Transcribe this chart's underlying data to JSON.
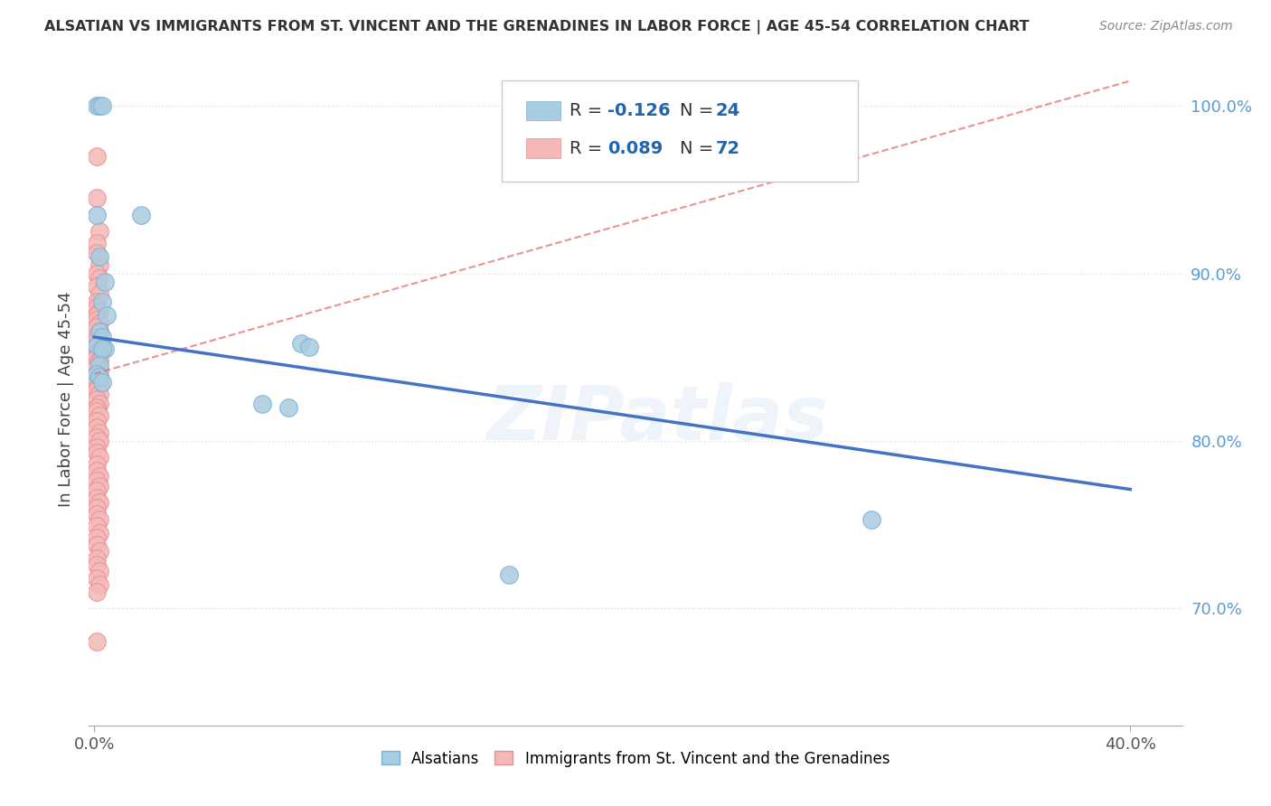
{
  "title": "ALSATIAN VS IMMIGRANTS FROM ST. VINCENT AND THE GRENADINES IN LABOR FORCE | AGE 45-54 CORRELATION CHART",
  "source": "Source: ZipAtlas.com",
  "ylabel": "In Labor Force | Age 45-54",
  "xlim": [
    -0.002,
    0.42
  ],
  "ylim": [
    0.63,
    1.02
  ],
  "xtick_positions": [
    0.0,
    0.4
  ],
  "xtick_labels": [
    "0.0%",
    "40.0%"
  ],
  "ytick_positions": [
    0.7,
    0.8,
    0.9,
    1.0
  ],
  "ytick_labels": [
    "70.0%",
    "80.0%",
    "90.0%",
    "100.0%"
  ],
  "blue_R": -0.126,
  "blue_N": 24,
  "pink_R": 0.089,
  "pink_N": 72,
  "blue_color": "#a8cce0",
  "pink_color": "#f4b8b8",
  "blue_edge_color": "#7bafd4",
  "pink_edge_color": "#e89090",
  "blue_line_color": "#4472c4",
  "pink_line_color": "#e07070",
  "legend_label_blue": "Alsatians",
  "legend_label_pink": "Immigrants from St. Vincent and the Grenadines",
  "blue_line_x0": 0.0,
  "blue_line_y0": 0.862,
  "blue_line_x1": 0.4,
  "blue_line_y1": 0.771,
  "pink_line_x0": 0.0,
  "pink_line_y0": 0.84,
  "pink_line_x1": 0.4,
  "pink_line_y1": 1.015,
  "blue_x": [
    0.001,
    0.002,
    0.003,
    0.001,
    0.002,
    0.004,
    0.003,
    0.005,
    0.002,
    0.003,
    0.001,
    0.004,
    0.003,
    0.002,
    0.001,
    0.002,
    0.003,
    0.08,
    0.083,
    0.065,
    0.075,
    0.16,
    0.3,
    0.018
  ],
  "blue_y": [
    1.0,
    1.0,
    1.0,
    0.935,
    0.91,
    0.895,
    0.883,
    0.875,
    0.865,
    0.862,
    0.857,
    0.855,
    0.855,
    0.845,
    0.84,
    0.838,
    0.835,
    0.858,
    0.856,
    0.822,
    0.82,
    0.72,
    0.753,
    0.935
  ],
  "pink_x": [
    0.001,
    0.001,
    0.002,
    0.001,
    0.001,
    0.002,
    0.001,
    0.002,
    0.001,
    0.002,
    0.001,
    0.001,
    0.002,
    0.001,
    0.001,
    0.002,
    0.001,
    0.002,
    0.001,
    0.001,
    0.002,
    0.001,
    0.002,
    0.001,
    0.001,
    0.002,
    0.001,
    0.001,
    0.002,
    0.001,
    0.002,
    0.001,
    0.002,
    0.001,
    0.001,
    0.002,
    0.001,
    0.002,
    0.001,
    0.001,
    0.002,
    0.001,
    0.001,
    0.002,
    0.001,
    0.002,
    0.001,
    0.001,
    0.002,
    0.001,
    0.001,
    0.002,
    0.001,
    0.002,
    0.001,
    0.001,
    0.002,
    0.001,
    0.001,
    0.002,
    0.001,
    0.002,
    0.001,
    0.001,
    0.002,
    0.001,
    0.001,
    0.002,
    0.001,
    0.002,
    0.001,
    0.001
  ],
  "pink_y": [
    0.97,
    0.945,
    0.925,
    0.918,
    0.912,
    0.905,
    0.9,
    0.897,
    0.892,
    0.888,
    0.883,
    0.88,
    0.877,
    0.875,
    0.872,
    0.87,
    0.868,
    0.865,
    0.862,
    0.86,
    0.858,
    0.856,
    0.854,
    0.852,
    0.85,
    0.848,
    0.846,
    0.844,
    0.842,
    0.84,
    0.838,
    0.836,
    0.834,
    0.832,
    0.83,
    0.828,
    0.825,
    0.822,
    0.82,
    0.818,
    0.815,
    0.812,
    0.808,
    0.805,
    0.802,
    0.8,
    0.796,
    0.793,
    0.79,
    0.786,
    0.782,
    0.779,
    0.776,
    0.773,
    0.77,
    0.766,
    0.763,
    0.76,
    0.756,
    0.753,
    0.749,
    0.745,
    0.742,
    0.738,
    0.734,
    0.73,
    0.726,
    0.722,
    0.718,
    0.714,
    0.71,
    0.68
  ],
  "watermark_text": "ZIPatlas",
  "bg_color": "#ffffff",
  "grid_color": "#e0e0e0",
  "ytick_color": "#5b9bd5",
  "xtick_color": "#555555"
}
